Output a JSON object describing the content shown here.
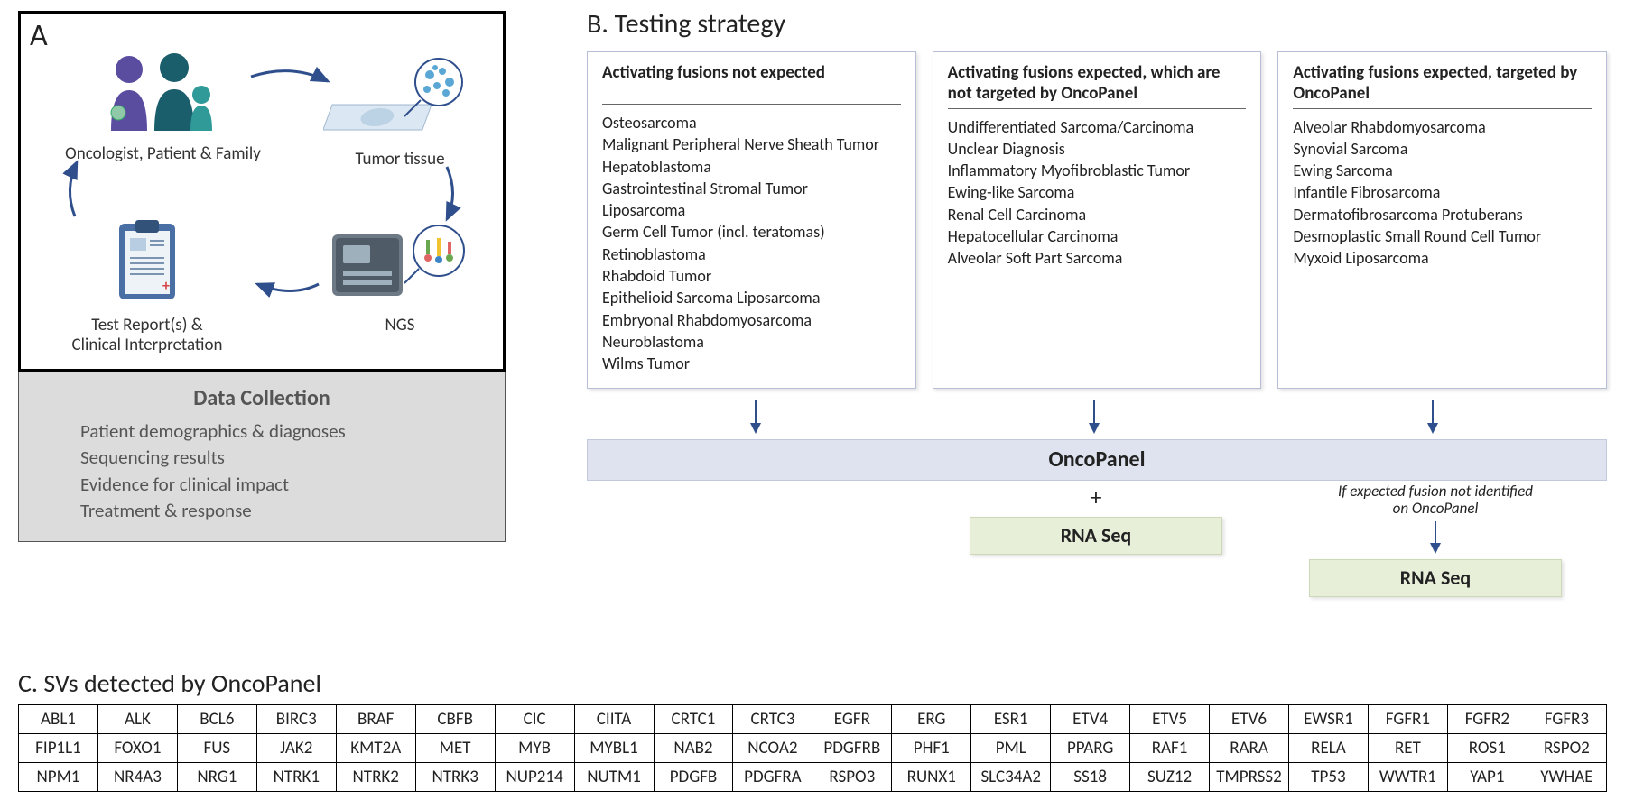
{
  "colors": {
    "arrow": "#2f4e8c",
    "oncopanel_bg": "#dfe2ef",
    "rnaseq_bg": "#e7efd9",
    "data_collect_bg": "#dcdcdc",
    "card_border": "#b6bfd6"
  },
  "panelA": {
    "label": "A",
    "nodes": {
      "oncologist": "Oncologist, Patient & Family",
      "tumor": "Tumor tissue",
      "ngs": "NGS",
      "report_l1": "Test Report(s) &",
      "report_l2": "Clinical Interpretation"
    },
    "data_collection": {
      "title": "Data Collection",
      "items": [
        "Patient demographics & diagnoses",
        "Sequencing results",
        "Evidence for clinical impact",
        "Treatment & response"
      ]
    }
  },
  "panelB": {
    "title": "B. Testing strategy",
    "cards": [
      {
        "head": "Activating fusions not expected",
        "items": [
          "Osteosarcoma",
          "Malignant Peripheral Nerve Sheath Tumor",
          "Hepatoblastoma",
          "Gastrointestinal Stromal Tumor",
          "Liposarcoma",
          "Germ Cell Tumor (incl. teratomas)",
          "Retinoblastoma",
          "Rhabdoid Tumor",
          "Epithelioid Sarcoma Liposarcoma",
          "Embryonal Rhabdomyosarcoma",
          "Neuroblastoma",
          "Wilms Tumor"
        ]
      },
      {
        "head": "Activating fusions expected, which are not targeted by OncoPanel",
        "items": [
          "Undifferentiated Sarcoma/Carcinoma",
          "Unclear Diagnosis",
          "Inflammatory Myofibroblastic Tumor",
          "Ewing-like Sarcoma",
          "Renal Cell Carcinoma",
          "Hepatocellular Carcinoma",
          "Alveolar Soft Part Sarcoma"
        ]
      },
      {
        "head": "Activating fusions expected, targeted by OncoPanel",
        "items": [
          "Alveolar Rhabdomyosarcoma",
          "Synovial Sarcoma",
          "Ewing Sarcoma",
          "Infantile Fibrosarcoma",
          "Dermatofibrosarcoma Protuberans",
          "Desmoplastic Small Round Cell Tumor",
          "Myxoid Liposarcoma"
        ]
      }
    ],
    "oncopanel": "OncoPanel",
    "plus": "+",
    "rnaseq": "RNA Seq",
    "followup_l1": "If expected fusion not identified",
    "followup_l2": "on OncoPanel"
  },
  "panelC": {
    "title": "C. SVs detected by OncoPanel",
    "rows": [
      [
        "ABL1",
        "ALK",
        "BCL6",
        "BIRC3",
        "BRAF",
        "CBFB",
        "CIC",
        "CIITA",
        "CRTC1",
        "CRTC3",
        "EGFR",
        "ERG",
        "ESR1",
        "ETV4",
        "ETV5",
        "ETV6",
        "EWSR1",
        "FGFR1",
        "FGFR2",
        "FGFR3"
      ],
      [
        "FIP1L1",
        "FOXO1",
        "FUS",
        "JAK2",
        "KMT2A",
        "MET",
        "MYB",
        "MYBL1",
        "NAB2",
        "NCOA2",
        "PDGFRB",
        "PHF1",
        "PML",
        "PPARG",
        "RAF1",
        "RARA",
        "RELA",
        "RET",
        "ROS1",
        "RSPO2"
      ],
      [
        "NPM1",
        "NR4A3",
        "NRG1",
        "NTRK1",
        "NTRK2",
        "NTRK3",
        "NUP214",
        "NUTM1",
        "PDGFB",
        "PDGFRA",
        "RSPO3",
        "RUNX1",
        "SLC34A2",
        "SS18",
        "SUZ12",
        "TMPRSS2",
        "TP53",
        "WWTR1",
        "YAP1",
        "YWHAE"
      ]
    ]
  }
}
